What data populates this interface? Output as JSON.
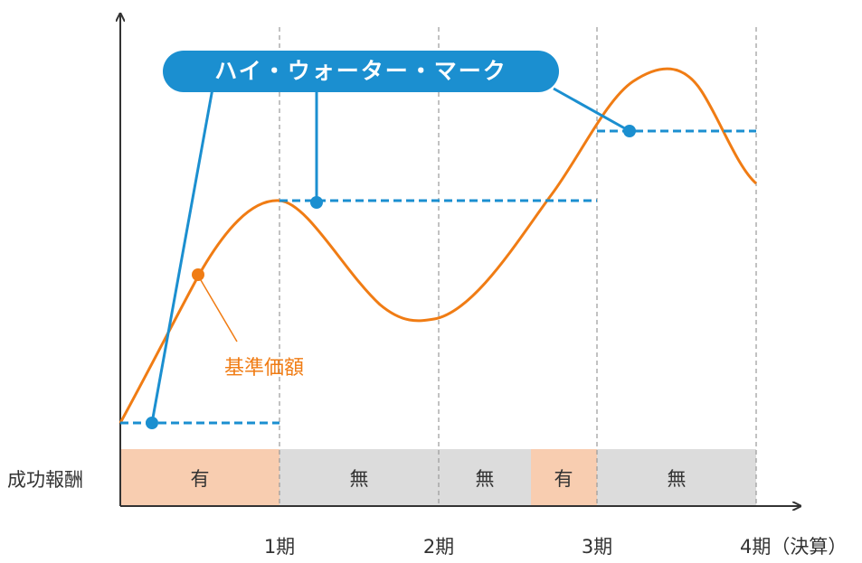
{
  "title": {
    "label": "ハイ・ウォーター・マーク",
    "color": "#1b8fd0",
    "text_color": "#ffffff"
  },
  "reference_price": {
    "label": "基準価額",
    "color": "#f07c14"
  },
  "success_fee": {
    "row_label": "成功報酬",
    "has_color": "#f8cdb0",
    "none_color": "#dcdcdc",
    "cells": [
      {
        "label": "有",
        "kind": "has"
      },
      {
        "label": "無",
        "kind": "none"
      },
      {
        "label": "無",
        "kind": "none"
      },
      {
        "label": "有",
        "kind": "has"
      },
      {
        "label": "無",
        "kind": "none"
      }
    ]
  },
  "periods": {
    "labels": [
      "1期",
      "2期",
      "3期",
      "4期（決算）"
    ]
  },
  "colors": {
    "axis": "#333333",
    "divider": "#9a9a9a",
    "text": "#333333"
  }
}
